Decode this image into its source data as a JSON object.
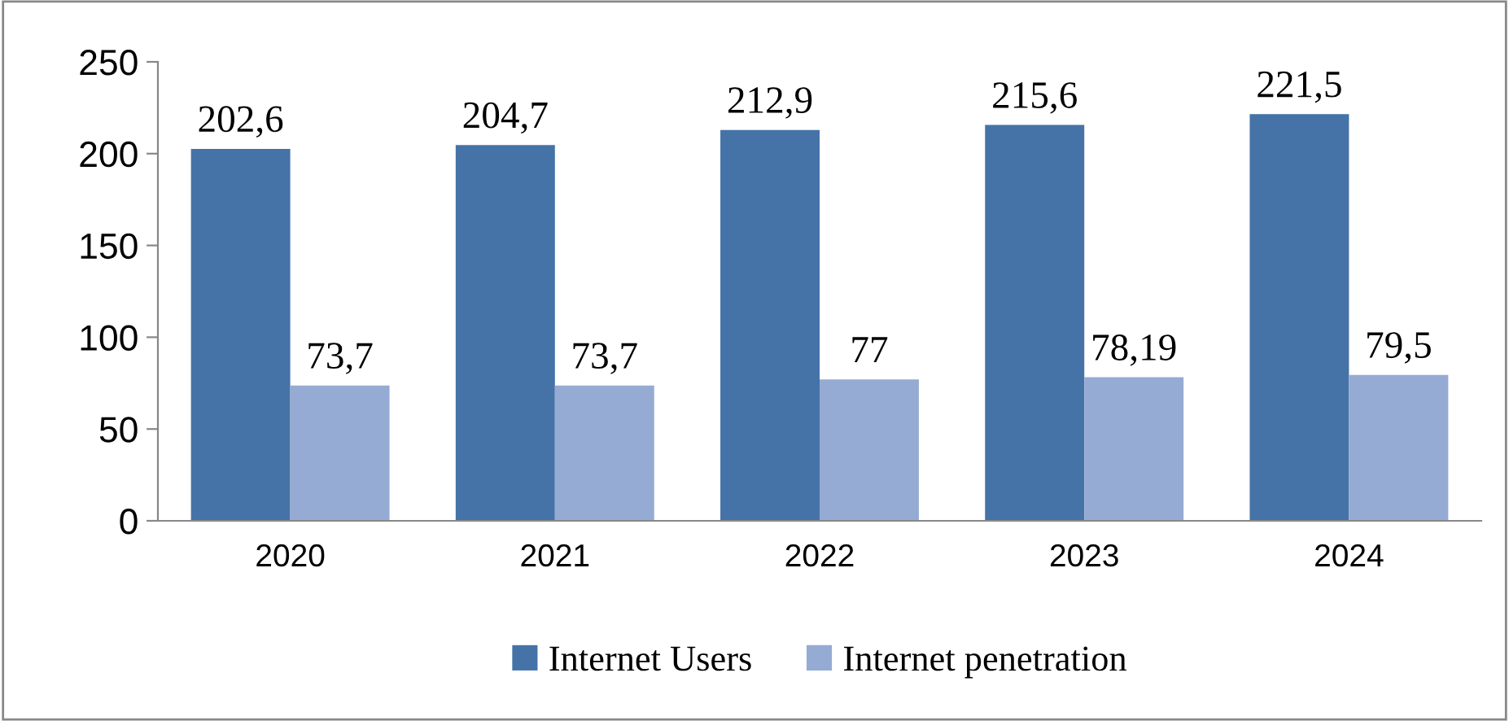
{
  "chart_data": {
    "type": "bar",
    "categories": [
      "2020",
      "2021",
      "2022",
      "2023",
      "2024"
    ],
    "series": [
      {
        "name": "Internet Users",
        "color": "#4573a7",
        "values": [
          202.6,
          204.7,
          212.9,
          215.6,
          221.5
        ],
        "value_labels": [
          "202,6",
          "204,7",
          "212,9",
          "215,6",
          "221,5"
        ]
      },
      {
        "name": "Internet penetration",
        "color": "#95abd3",
        "values": [
          73.7,
          73.7,
          77,
          78.19,
          79.5
        ],
        "value_labels": [
          "73,7",
          "73,7",
          "77",
          "78,19",
          "79,5"
        ]
      }
    ],
    "ylim": [
      0,
      250
    ],
    "yticks": [
      0,
      50,
      100,
      150,
      200,
      250
    ],
    "grid": false,
    "legend": "bottom"
  }
}
